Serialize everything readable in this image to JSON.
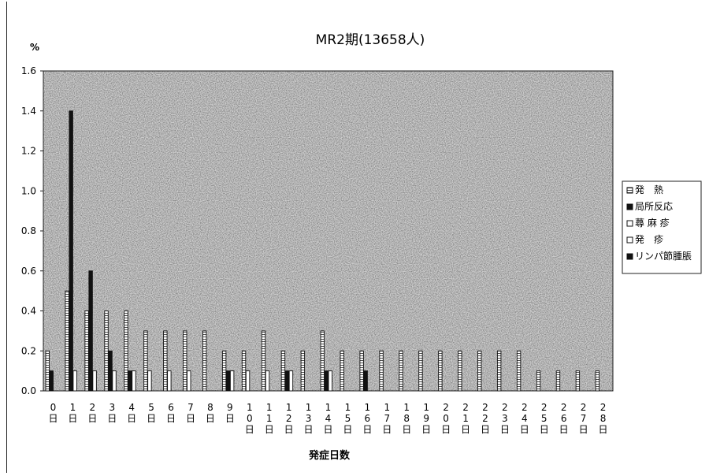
{
  "chart_data": {
    "type": "bar",
    "title": "MR2期(13658人)",
    "ylabel": "%",
    "xlabel": "発症日数",
    "ylim": [
      0,
      1.6
    ],
    "yticks": [
      "0.0",
      "0.2",
      "0.4",
      "0.6",
      "0.8",
      "1.0",
      "1.2",
      "1.4",
      "1.6"
    ],
    "categories": [
      [
        "0",
        "日"
      ],
      [
        "1",
        "日"
      ],
      [
        "2",
        "日"
      ],
      [
        "3",
        "日"
      ],
      [
        "4",
        "日"
      ],
      [
        "5",
        "日"
      ],
      [
        "6",
        "日"
      ],
      [
        "7",
        "日"
      ],
      [
        "8",
        "日"
      ],
      [
        "9",
        "日"
      ],
      [
        "1",
        "0",
        "日"
      ],
      [
        "1",
        "1",
        "日"
      ],
      [
        "1",
        "2",
        "日"
      ],
      [
        "1",
        "3",
        "日"
      ],
      [
        "1",
        "4",
        "日"
      ],
      [
        "1",
        "5",
        "日"
      ],
      [
        "1",
        "6",
        "日"
      ],
      [
        "1",
        "7",
        "日"
      ],
      [
        "1",
        "8",
        "日"
      ],
      [
        "1",
        "9",
        "日"
      ],
      [
        "2",
        "0",
        "日"
      ],
      [
        "2",
        "1",
        "日"
      ],
      [
        "2",
        "2",
        "日"
      ],
      [
        "2",
        "3",
        "日"
      ],
      [
        "2",
        "4",
        "日"
      ],
      [
        "2",
        "5",
        "日"
      ],
      [
        "2",
        "6",
        "日"
      ],
      [
        "2",
        "7",
        "日"
      ],
      [
        "2",
        "8",
        "日"
      ]
    ],
    "series": [
      {
        "name": "発　熱",
        "color": "#f2f2f2",
        "values": [
          0.2,
          0.5,
          0.4,
          0.4,
          0.4,
          0.3,
          0.3,
          0.3,
          0.3,
          0.2,
          0.2,
          0.3,
          0.2,
          0.2,
          0.3,
          0.2,
          0.2,
          0.2,
          0.2,
          0.2,
          0.2,
          0.2,
          0.2,
          0.2,
          0.2,
          0.1,
          0.1,
          0.1,
          0.1
        ]
      },
      {
        "name": "局所反応",
        "color": "#111111",
        "values": [
          0.1,
          1.4,
          0.6,
          0.2,
          0.1,
          0,
          0,
          0,
          0,
          0.1,
          0,
          0,
          0.1,
          0,
          0.1,
          0,
          0.1,
          0,
          0,
          0,
          0,
          0,
          0,
          0,
          0,
          0,
          0,
          0,
          0
        ]
      },
      {
        "name": "蕁 麻 疹",
        "color": "#ffffff",
        "values": [
          0,
          0.1,
          0.1,
          0.1,
          0.1,
          0.1,
          0.1,
          0.1,
          0,
          0.1,
          0.1,
          0.1,
          0.1,
          0,
          0.1,
          0,
          0,
          0,
          0,
          0,
          0,
          0,
          0,
          0,
          0,
          0,
          0,
          0,
          0
        ]
      },
      {
        "name": "発　疹",
        "color": "#ffffff",
        "values": [
          0,
          0,
          0,
          0,
          0,
          0,
          0,
          0,
          0,
          0,
          0,
          0,
          0,
          0,
          0,
          0,
          0,
          0,
          0,
          0,
          0,
          0,
          0,
          0,
          0,
          0,
          0,
          0,
          0
        ]
      },
      {
        "name": "リンパ節腫脹",
        "color": "#111111",
        "values": [
          0,
          0,
          0,
          0,
          0,
          0,
          0,
          0,
          0,
          0,
          0,
          0,
          0,
          0,
          0,
          0,
          0,
          0,
          0,
          0,
          0,
          0,
          0,
          0,
          0,
          0,
          0,
          0,
          0
        ]
      }
    ],
    "legend_position": "right",
    "legend_swatches": [
      "hatched",
      "solid",
      "open",
      "open",
      "solid"
    ],
    "grid": false,
    "plot_background": "stippled-gray"
  }
}
